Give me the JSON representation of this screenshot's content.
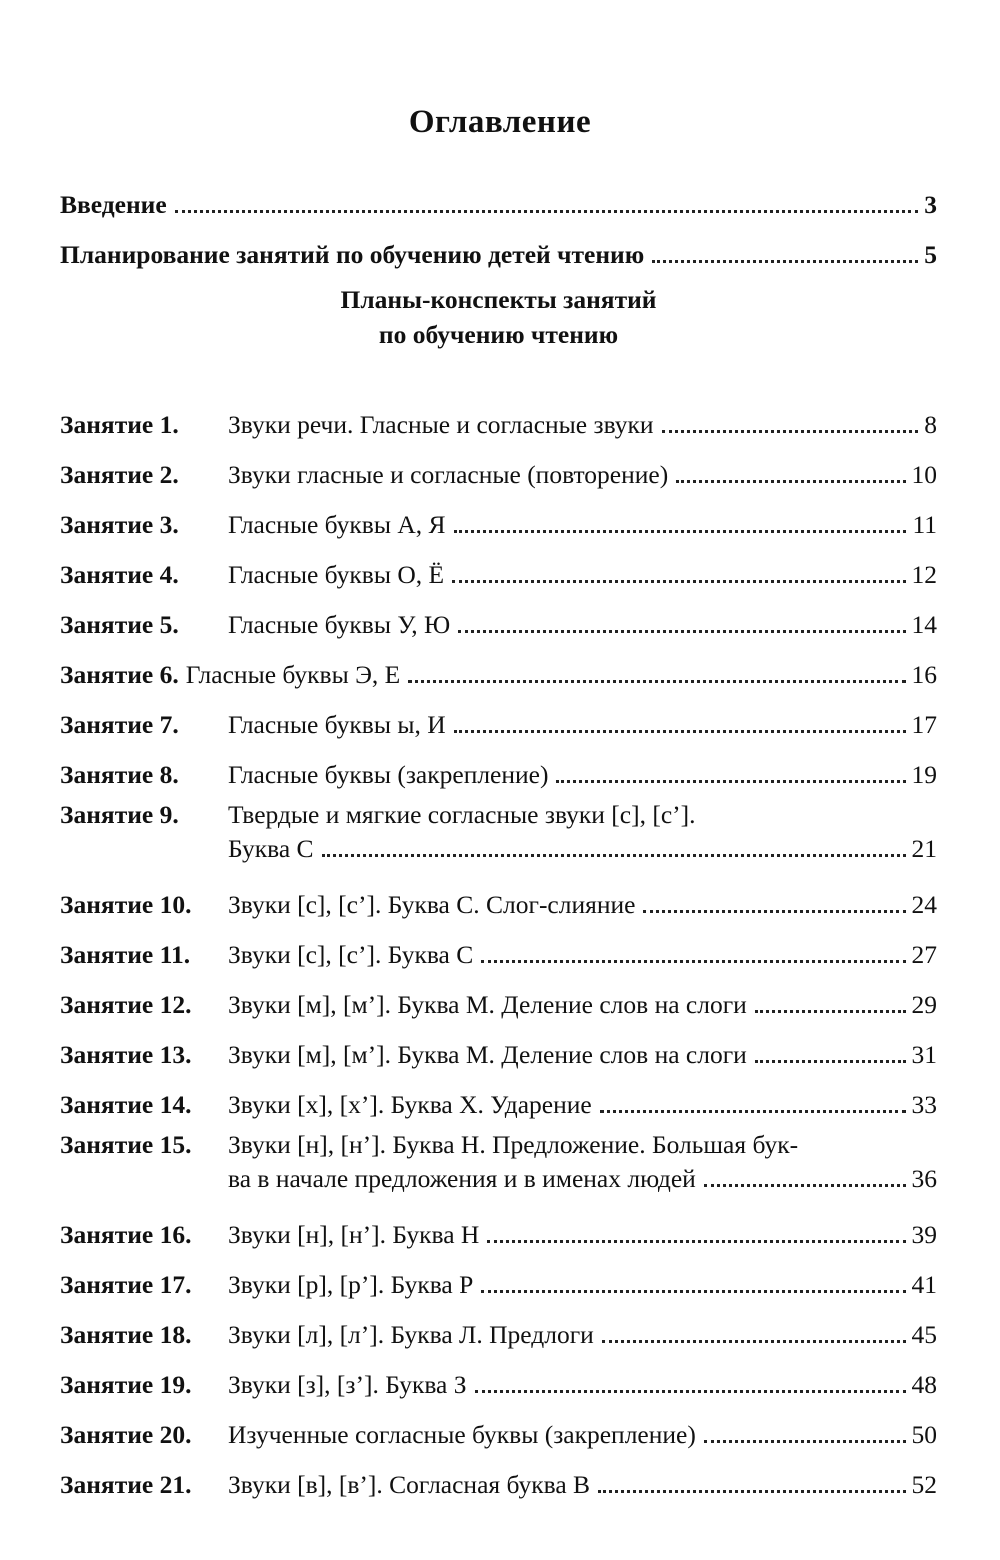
{
  "title": "Оглавление",
  "intro": [
    {
      "lines": [
        "Введение"
      ],
      "page": "3"
    },
    {
      "lines": [
        "Планирование занятий по обучению детей чтению"
      ],
      "page": "5"
    }
  ],
  "section": {
    "line1": "Планы-конспекты занятий",
    "line2": "по обучению чтению"
  },
  "entries": [
    {
      "label": "Занятие 1.",
      "lines": [
        "Звуки речи. Гласные и согласные звуки"
      ],
      "page": "8"
    },
    {
      "label": "Занятие 2.",
      "lines": [
        "Звуки гласные и согласные (повторение)"
      ],
      "page": "10"
    },
    {
      "label": "Занятие 3.",
      "lines": [
        "Гласные буквы А, Я"
      ],
      "page": "11"
    },
    {
      "label": "Занятие 4.",
      "lines": [
        "Гласные буквы О, Ё"
      ],
      "page": "12"
    },
    {
      "label": "Занятие 5.",
      "lines": [
        "Гласные буквы У, Ю"
      ],
      "page": "14"
    },
    {
      "label": "Занятие 6.",
      "inline": true,
      "lines": [
        "Гласные буквы Э, Е"
      ],
      "page": "16"
    },
    {
      "label": "Занятие 7.",
      "lines": [
        "Гласные буквы ы, И"
      ],
      "page": "17"
    },
    {
      "label": "Занятие 8.",
      "lines": [
        "Гласные буквы (закрепление)"
      ],
      "page": "19"
    },
    {
      "label": "Занятие 9.",
      "lines": [
        "Твердые и мягкие согласные звуки [с], [с’].",
        "Буква С"
      ],
      "page": "21"
    },
    {
      "label": "Занятие 10.",
      "lines": [
        "Звуки [с], [с’]. Буква С. Слог-слияние"
      ],
      "page": "24"
    },
    {
      "label": "Занятие 11.",
      "lines": [
        "Звуки [с], [с’]. Буква С"
      ],
      "page": "27"
    },
    {
      "label": "Занятие 12.",
      "lines": [
        "Звуки [м], [м’]. Буква М. Деление слов на слоги"
      ],
      "page": "29"
    },
    {
      "label": "Занятие 13.",
      "lines": [
        "Звуки [м], [м’]. Буква М. Деление слов на слоги"
      ],
      "page": "31"
    },
    {
      "label": "Занятие 14.",
      "lines": [
        "Звуки [х], [х’]. Буква Х. Ударение"
      ],
      "page": "33"
    },
    {
      "label": "Занятие 15.",
      "lines": [
        "Звуки [н], [н’]. Буква Н. Предложение. Большая бук-",
        "ва в начале предложения и в именах людей"
      ],
      "page": "36"
    },
    {
      "label": "Занятие 16.",
      "lines": [
        "Звуки [н], [н’]. Буква Н"
      ],
      "page": "39"
    },
    {
      "label": "Занятие 17.",
      "lines": [
        "Звуки [р], [р’]. Буква Р"
      ],
      "page": "41"
    },
    {
      "label": "Занятие 18.",
      "lines": [
        "Звуки [л], [л’]. Буква Л. Предлоги"
      ],
      "page": "45"
    },
    {
      "label": "Занятие 19.",
      "lines": [
        "Звуки [з], [з’]. Буква З"
      ],
      "page": "48"
    },
    {
      "label": "Занятие 20.",
      "lines": [
        "Изученные согласные буквы (закрепление)"
      ],
      "page": "50"
    },
    {
      "label": "Занятие 21.",
      "lines": [
        "Звуки [в], [в’]. Согласная буква В"
      ],
      "page": "52"
    }
  ]
}
